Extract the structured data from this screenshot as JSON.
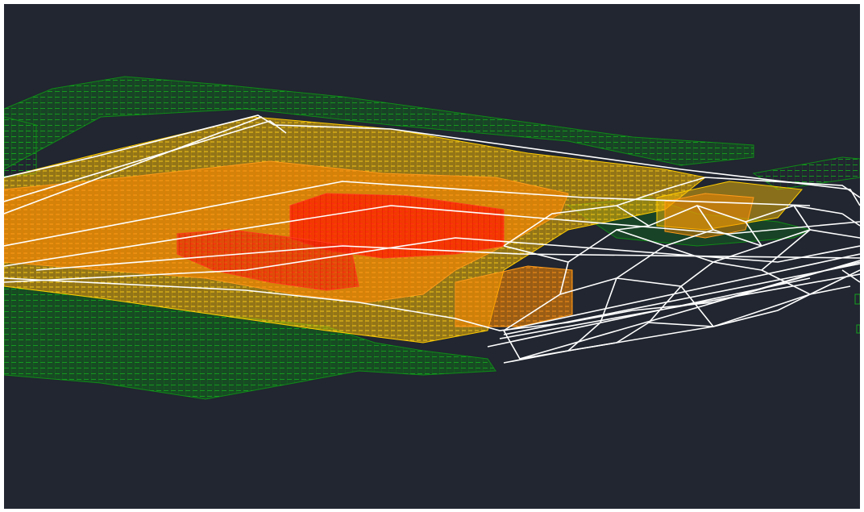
{
  "viewport": {
    "view_style": "3D wireframe",
    "background_color": "#212630"
  },
  "legend_colors": {
    "low": "#0c7a14",
    "mid_low": "#f2b705",
    "mid_high": "#ff8a00",
    "high": "#ff1a00",
    "surface_mesh": "#ffffff"
  },
  "icons": []
}
